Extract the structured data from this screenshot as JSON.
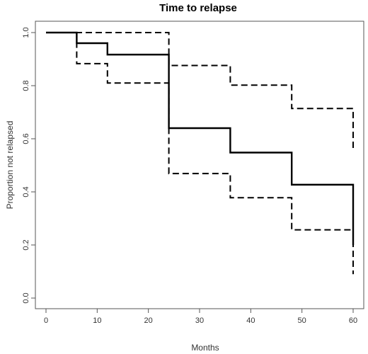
{
  "chart_data": {
    "type": "line",
    "title": "Time to relapse",
    "xlabel": "Months",
    "ylabel": "Proportion not relapsed",
    "xlim": [
      0,
      62
    ],
    "ylim": [
      -0.05,
      1.03
    ],
    "xticks": [
      0,
      10,
      20,
      30,
      40,
      50,
      60
    ],
    "yticks": [
      0.0,
      0.2,
      0.4,
      0.6,
      0.8,
      1.0
    ],
    "xtick_labels": [
      "0",
      "10",
      "20",
      "30",
      "40",
      "50",
      "60"
    ],
    "ytick_labels": [
      "0.0",
      "0.2",
      "0.4",
      "0.6",
      "0.8",
      "1.0"
    ],
    "grid": false,
    "step": true,
    "series": [
      {
        "style": "solid",
        "x": [
          0,
          6,
          12,
          24,
          36,
          48,
          60
        ],
        "y": [
          1.0,
          0.96,
          0.917,
          0.64,
          0.548,
          0.427,
          0.2
        ]
      },
      {
        "style": "dashed",
        "x": [
          0,
          6,
          12,
          24,
          36,
          48,
          60
        ],
        "y": [
          1.0,
          0.883,
          0.81,
          0.469,
          0.378,
          0.257,
          0.09
        ]
      },
      {
        "style": "dashed",
        "x": [
          0,
          6,
          12,
          24,
          36,
          48,
          60
        ],
        "y": [
          1.0,
          1.0,
          1.0,
          0.876,
          0.802,
          0.714,
          0.56
        ]
      }
    ]
  }
}
